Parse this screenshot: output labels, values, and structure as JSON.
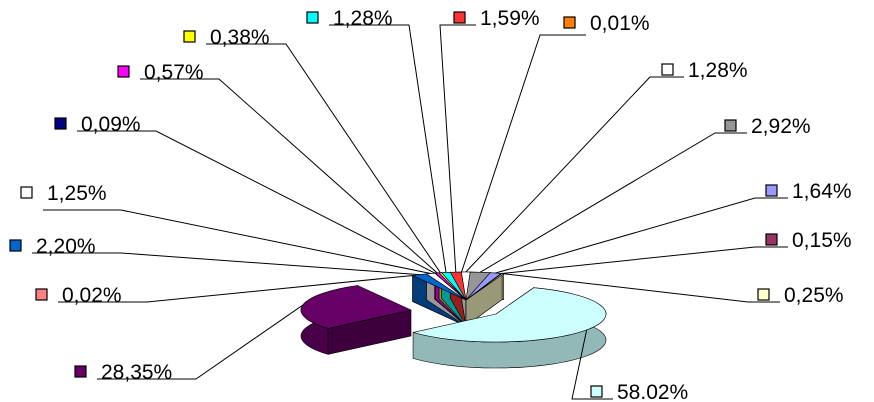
{
  "chart_data": {
    "type": "pie",
    "style": "3d-exploded",
    "title": "",
    "slices": [
      {
        "label": "58.02%",
        "value": 58.02,
        "color": "#ccffff"
      },
      {
        "label": "28,35%",
        "value": 28.35,
        "color": "#660066"
      },
      {
        "label": "0,02%",
        "value": 0.02,
        "color": "#ff8080"
      },
      {
        "label": "2,20%",
        "value": 2.2,
        "color": "#0066cc"
      },
      {
        "label": "1,25%",
        "value": 1.25,
        "color": "#ffffff"
      },
      {
        "label": "0,09%",
        "value": 0.09,
        "color": "#000080"
      },
      {
        "label": "0,57%",
        "value": 0.57,
        "color": "#ff00ff"
      },
      {
        "label": "0,38%",
        "value": 0.38,
        "color": "#ffff00"
      },
      {
        "label": "1,28%",
        "value": 1.28,
        "color": "#00ffff"
      },
      {
        "label": "1,59%",
        "value": 1.59,
        "color": "#ff3333"
      },
      {
        "label": "0,01%",
        "value": 0.01,
        "color": "#ff8000"
      },
      {
        "label": "1,28%",
        "value": 1.28,
        "color": "#ffffff"
      },
      {
        "label": "2,92%",
        "value": 2.92,
        "color": "#969696"
      },
      {
        "label": "1,64%",
        "value": 1.64,
        "color": "#9999ff"
      },
      {
        "label": "0,15%",
        "value": 0.15,
        "color": "#993366"
      },
      {
        "label": "0,25%",
        "value": 0.25,
        "color": "#ffffcc"
      }
    ]
  }
}
